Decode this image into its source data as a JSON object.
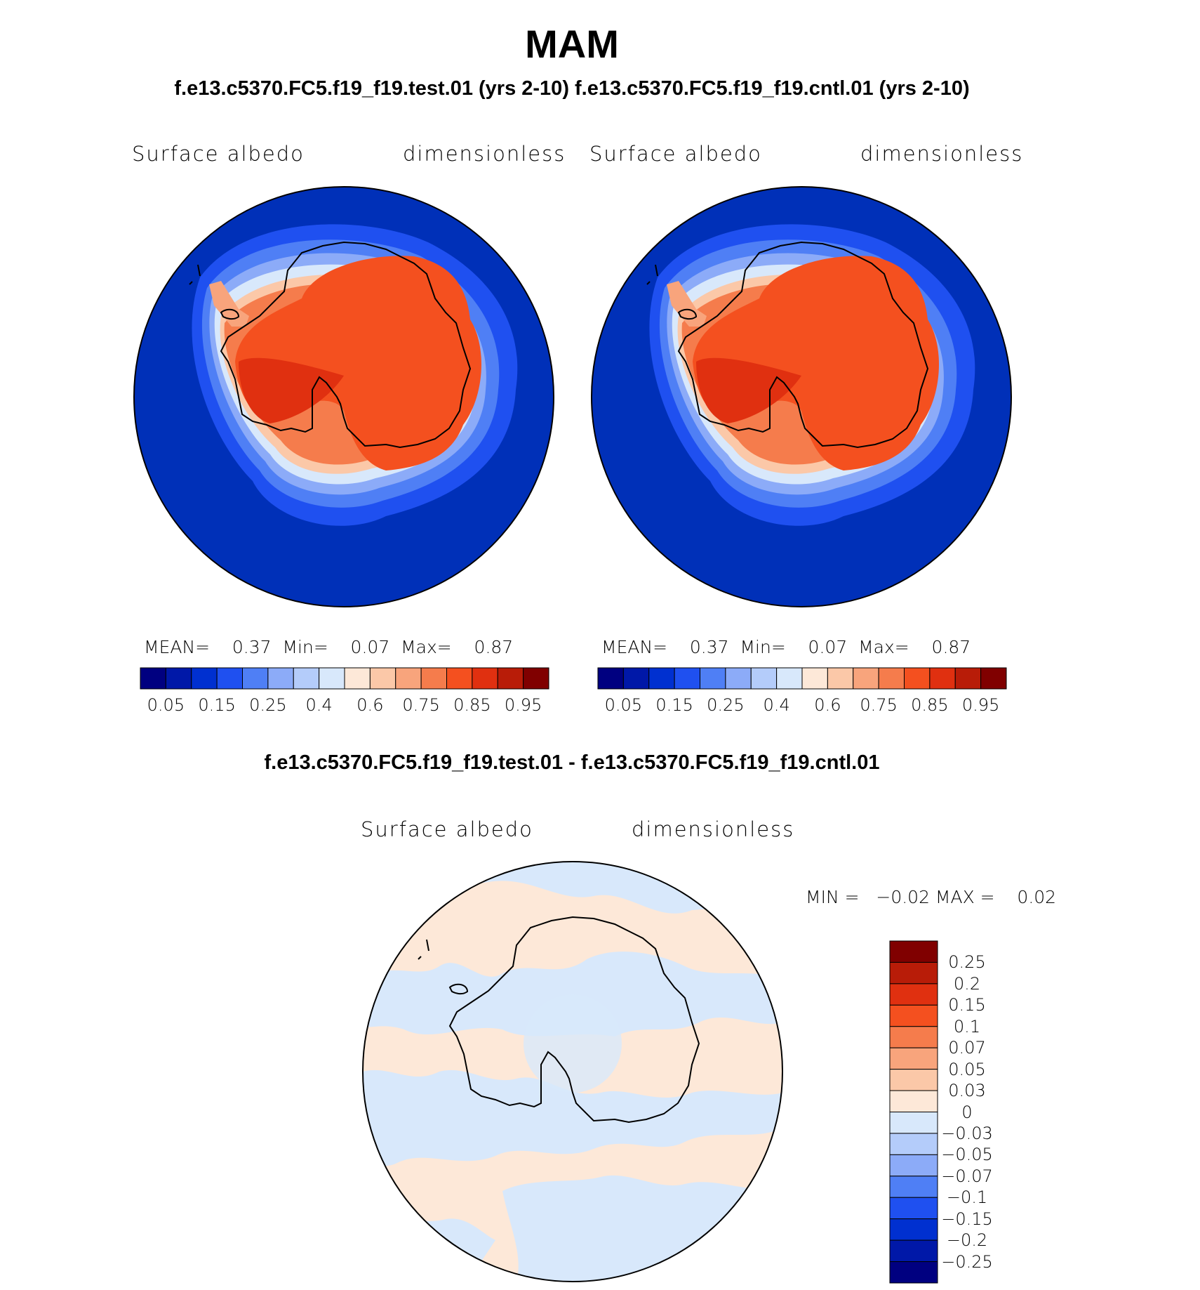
{
  "title": "MAM",
  "subtitle": "f.e13.c5370.FC5.f19_f19.test.01 (yrs 2-10) f.e13.c5370.FC5.f19_f19.cntl.01 (yrs 2-10)",
  "diff_title": "f.e13.c5370.FC5.f19_f19.test.01 - f.e13.c5370.FC5.f19_f19.cntl.01",
  "panels": [
    {
      "variable": "Surface albedo",
      "units": "dimensionless",
      "stats": "MEAN=    0.37  Min=    0.07  Max=    0.87"
    },
    {
      "variable": "Surface albedo",
      "units": "dimensionless",
      "stats": "MEAN=    0.37  Min=    0.07  Max=    0.87"
    }
  ],
  "diff_panel": {
    "variable": "Surface albedo",
    "units": "dimensionless",
    "stats": "MIN =   −0.02 MAX =    0.02"
  },
  "colorbar_main": {
    "colors": [
      "#000080",
      "#0018a8",
      "#0030d0",
      "#1f50f0",
      "#4f7ff5",
      "#8cabf8",
      "#b4ccfa",
      "#d8e8fb",
      "#fde8d8",
      "#fbc8a8",
      "#f8a47c",
      "#f57c4c",
      "#f4501f",
      "#e03010",
      "#b81c08",
      "#800000"
    ],
    "ticks": [
      "0.05",
      "0.15",
      "0.25",
      "0.4",
      "0.6",
      "0.75",
      "0.85",
      "0.95"
    ]
  },
  "colorbar_diff": {
    "colors": [
      "#800000",
      "#b81c08",
      "#e03010",
      "#f4501f",
      "#f57c4c",
      "#f8a47c",
      "#fbc8a8",
      "#fde8d8",
      "#d8e8fb",
      "#b4ccfa",
      "#8cabf8",
      "#4f7ff5",
      "#1f50f0",
      "#0030d0",
      "#0018a8",
      "#000080"
    ],
    "ticks": [
      "0.25",
      "0.2",
      "0.15",
      "0.1",
      "0.07",
      "0.05",
      "0.03",
      "0",
      "−0.03",
      "−0.05",
      "−0.07",
      "−0.1",
      "−0.15",
      "−0.2",
      "−0.25"
    ]
  },
  "map_colors": {
    "ocean": "#0030b8",
    "land": "#f4501f",
    "diff_pos": "#fde8d8",
    "diff_neg": "#d8e8fb"
  }
}
